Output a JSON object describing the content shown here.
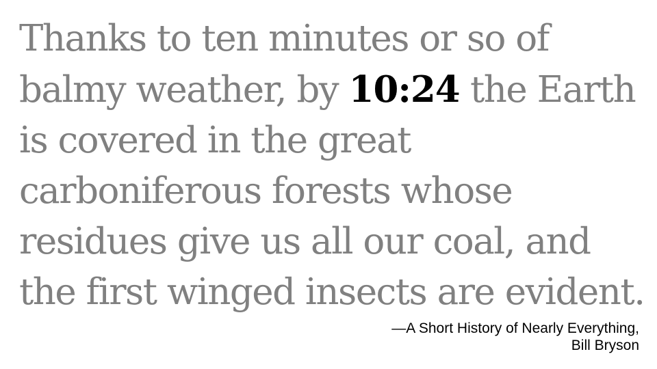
{
  "quote": {
    "before": "Thanks to ten minutes or so of balmy weather, by ",
    "time": "10:24",
    "after": " the Earth is covered in the great carboniferous forests whose residues give us all our coal, and the first winged insects are evident."
  },
  "attribution": {
    "title": "—A Short History of Nearly Everything,",
    "author": "Bill Bryson"
  },
  "colors": {
    "quote_text": "#808080",
    "highlight_text": "#000000",
    "background": "#ffffff"
  }
}
